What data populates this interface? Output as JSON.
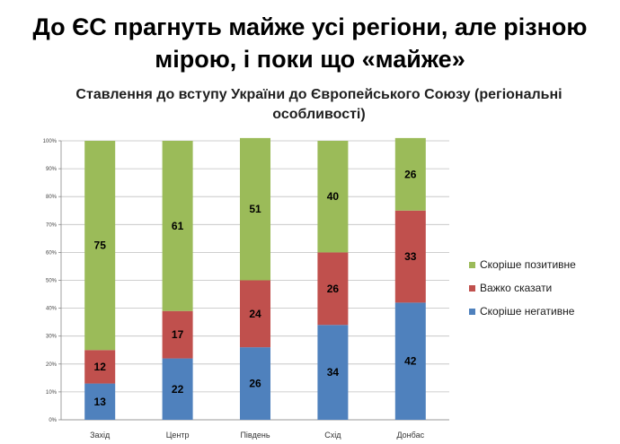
{
  "slide": {
    "title_line1": "До ЄС прагнуть майже усі регіони, але різною",
    "title_line2": "мірою, і поки що «майже»"
  },
  "chart_data": {
    "type": "bar",
    "stacked": true,
    "title_line1": "Ставлення до вступу України до Європейського Союзу (регіональні",
    "title_line2": "особливості)",
    "categories": [
      "Захід",
      "Центр",
      "Південь",
      "Схід",
      "Донбас"
    ],
    "series": [
      {
        "name": "Скоріше негативне",
        "color": "#4F81BD",
        "values": [
          13,
          22,
          26,
          34,
          42
        ]
      },
      {
        "name": "Важко сказати",
        "color": "#C0504D",
        "values": [
          12,
          17,
          24,
          26,
          33
        ]
      },
      {
        "name": "Скоріше позитивне",
        "color": "#9BBB59",
        "values": [
          75,
          61,
          51,
          40,
          26
        ]
      }
    ],
    "legend_order": [
      "Скоріше позитивне",
      "Важко сказати",
      "Скоріше негативне"
    ],
    "yticks": [
      "0%",
      "10%",
      "20%",
      "30%",
      "40%",
      "50%",
      "60%",
      "70%",
      "80%",
      "90%",
      "100%"
    ],
    "ylim": [
      0,
      100
    ],
    "grid": true,
    "legend_position": "right"
  }
}
